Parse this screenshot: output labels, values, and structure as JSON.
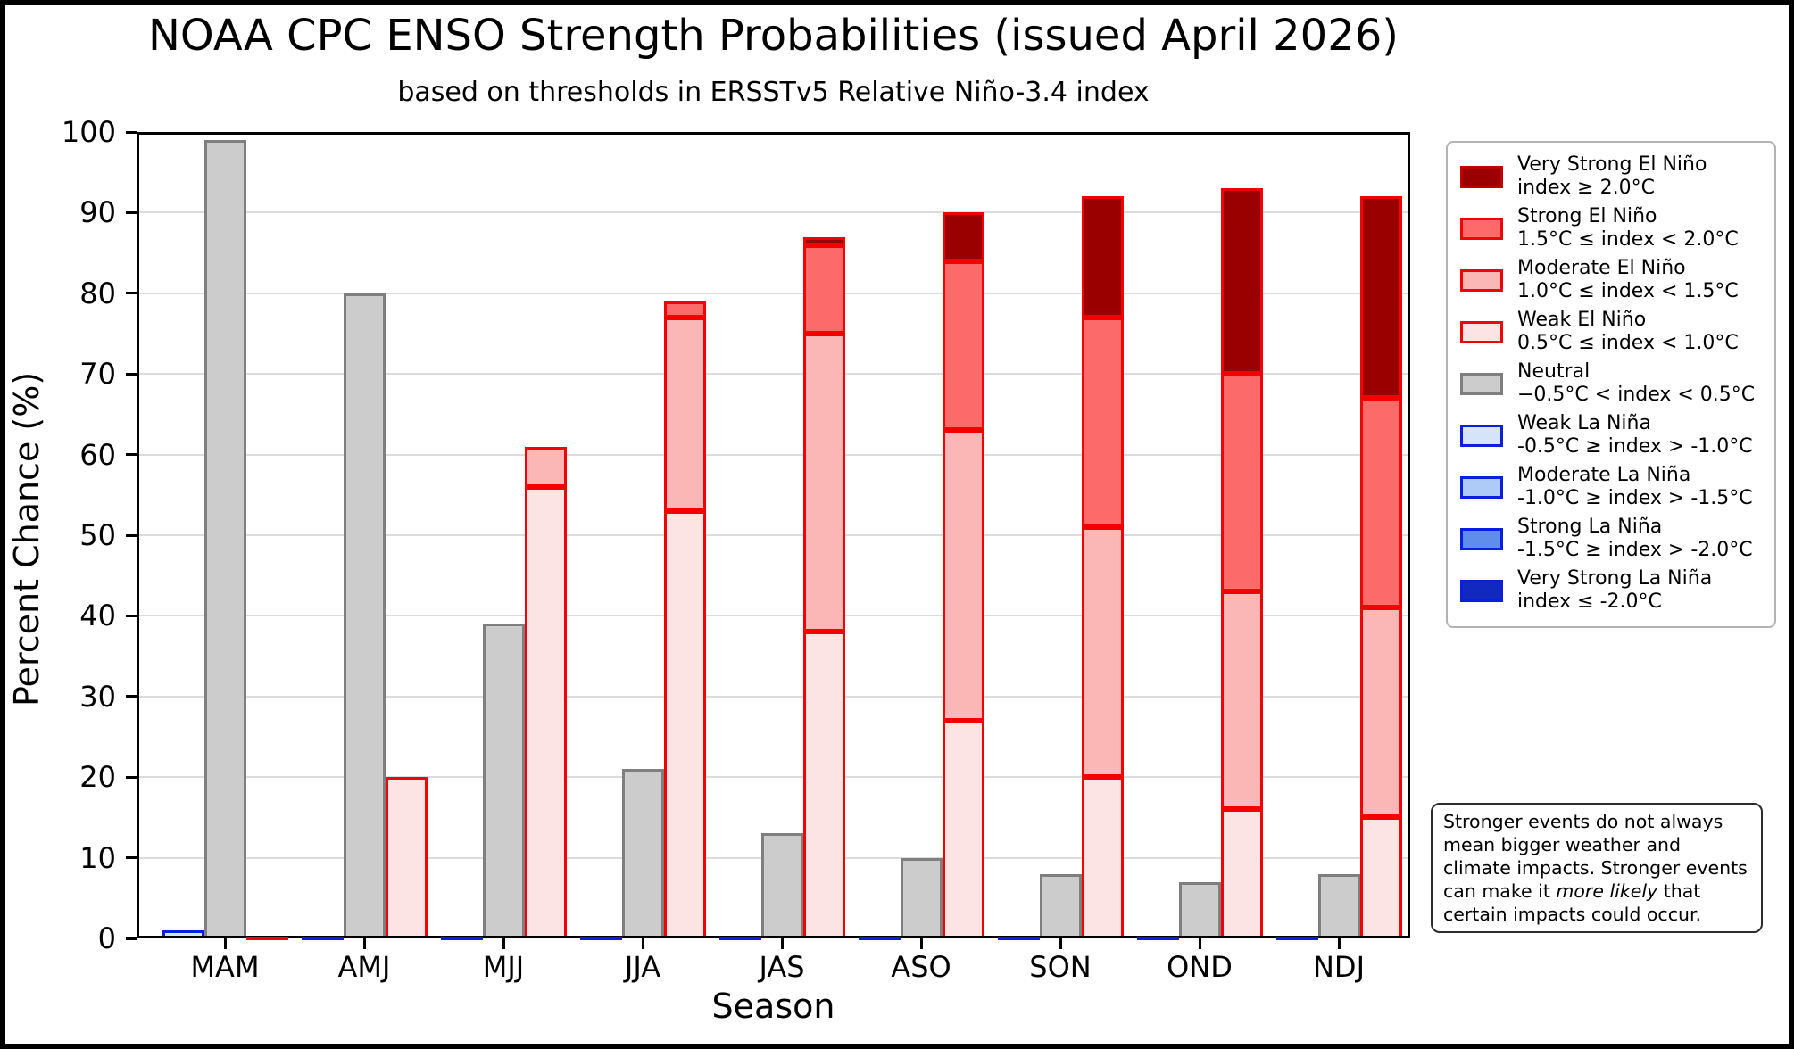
{
  "chart_data": {
    "type": "bar",
    "stacked": true,
    "title": "NOAA CPC ENSO Strength Probabilities (issued April 2026)",
    "subtitle": "based on thresholds in ERSSTv5 Relative Niño-3.4 index",
    "xlabel": "Season",
    "ylabel": "Percent Chance (%)",
    "ylim": [
      0,
      100
    ],
    "ytick_step": 10,
    "grid": true,
    "legend_position": "right",
    "categories": [
      "MAM",
      "AMJ",
      "MJJ",
      "JJA",
      "JAS",
      "ASO",
      "SON",
      "OND",
      "NDJ"
    ],
    "series": [
      {
        "name": "Weak La Niña",
        "stack": "la-nina",
        "fill": "#d6e4fa",
        "edge": "#0a1ede",
        "values": [
          1,
          0,
          0,
          0,
          0,
          0,
          0,
          0,
          0
        ]
      },
      {
        "name": "Moderate La Niña",
        "stack": "la-nina",
        "fill": "#aecbf7",
        "edge": "#0a1ede",
        "values": [
          0,
          0,
          0,
          0,
          0,
          0,
          0,
          0,
          0
        ]
      },
      {
        "name": "Strong La Niña",
        "stack": "la-nina",
        "fill": "#5e8deb",
        "edge": "#0a1ede",
        "values": [
          0,
          0,
          0,
          0,
          0,
          0,
          0,
          0,
          0
        ]
      },
      {
        "name": "Very Strong La Niña",
        "stack": "la-nina",
        "fill": "#1129be",
        "edge": "#0a1ede",
        "values": [
          0,
          0,
          0,
          0,
          0,
          0,
          0,
          0,
          0
        ]
      },
      {
        "name": "Neutral",
        "stack": "neutral",
        "fill": "#cccccc",
        "edge": "#7f7f7f",
        "values": [
          99,
          80,
          39,
          21,
          13,
          10,
          8,
          7,
          8
        ]
      },
      {
        "name": "Weak El Niño",
        "stack": "el-nino",
        "fill": "#fde4e4",
        "edge": "#f40000",
        "values": [
          0,
          20,
          56,
          53,
          38,
          27,
          20,
          16,
          15
        ]
      },
      {
        "name": "Moderate El Niño",
        "stack": "el-nino",
        "fill": "#fbb6b6",
        "edge": "#f40000",
        "values": [
          0,
          0,
          5,
          24,
          37,
          36,
          31,
          27,
          26
        ]
      },
      {
        "name": "Strong El Niño",
        "stack": "el-nino",
        "fill": "#fc6a6a",
        "edge": "#f40000",
        "values": [
          0,
          0,
          0,
          2,
          11,
          21,
          26,
          27,
          26
        ]
      },
      {
        "name": "Very Strong El Niño",
        "stack": "el-nino",
        "fill": "#9a0000",
        "edge": "#f40000",
        "values": [
          0,
          0,
          0,
          0,
          1,
          6,
          15,
          23,
          25
        ]
      }
    ]
  },
  "legend": {
    "items": [
      {
        "name": "Very Strong El Niño",
        "range": "index ≥ 2.0°C",
        "fill": "#9a0000",
        "edge": "#c00000"
      },
      {
        "name": "Strong El Niño",
        "range": "1.5°C ≤ index < 2.0°C",
        "fill": "#fc6a6a",
        "edge": "#f40000"
      },
      {
        "name": "Moderate El Niño",
        "range": "1.0°C ≤ index < 1.5°C",
        "fill": "#fbb6b6",
        "edge": "#f40000"
      },
      {
        "name": "Weak El Niño",
        "range": "0.5°C ≤ index < 1.0°C",
        "fill": "#fde4e4",
        "edge": "#f40000"
      },
      {
        "name": "Neutral",
        "range": "−0.5°C < index < 0.5°C",
        "fill": "#cccccc",
        "edge": "#7f7f7f"
      },
      {
        "name": "Weak La Niña",
        "range": "-0.5°C ≥ index > -1.0°C",
        "fill": "#d6e4fa",
        "edge": "#0a1ede"
      },
      {
        "name": "Moderate La Niña",
        "range": "-1.0°C ≥ index > -1.5°C",
        "fill": "#aecbf7",
        "edge": "#0a1ede"
      },
      {
        "name": "Strong La Niña",
        "range": "-1.5°C ≥ index > -2.0°C",
        "fill": "#5e8deb",
        "edge": "#0a1ede"
      },
      {
        "name": "Very Strong La Niña",
        "range": "index ≤ -2.0°C",
        "fill": "#1129be",
        "edge": "#0a1ede"
      }
    ]
  },
  "note": {
    "text_before": "Stronger events do not always mean bigger weather and climate impacts. Stronger events can make it ",
    "italic": "more likely",
    "text_after": " that certain impacts could occur."
  }
}
